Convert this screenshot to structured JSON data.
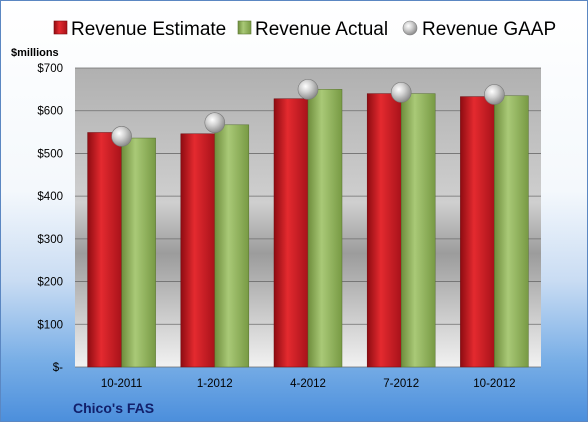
{
  "colors": {
    "estimate": "#c8141e",
    "actual": "#8fb15a",
    "gaap": "#b4b4b4"
  },
  "chart_data": {
    "type": "bar",
    "unit_label": "$millions",
    "company": "Chico's FAS",
    "categories": [
      "10-2011",
      "1-2012",
      "4-2012",
      "7-2012",
      "10-2012"
    ],
    "series": [
      {
        "name": "Revenue Estimate",
        "values": [
          549,
          546,
          628,
          640,
          633
        ]
      },
      {
        "name": "Revenue Actual",
        "values": [
          536,
          567,
          650,
          640,
          635
        ]
      },
      {
        "name": "Revenue GAAP",
        "values": [
          540,
          572,
          650,
          643,
          638
        ]
      }
    ],
    "yticks": [
      0,
      100,
      200,
      300,
      400,
      500,
      600,
      700
    ],
    "ytick_labels": [
      "$-",
      "$100",
      "$200",
      "$300",
      "$400",
      "$500",
      "$600",
      "$700"
    ],
    "ylim": [
      0,
      700
    ],
    "grid": true,
    "legend_position": "top"
  }
}
